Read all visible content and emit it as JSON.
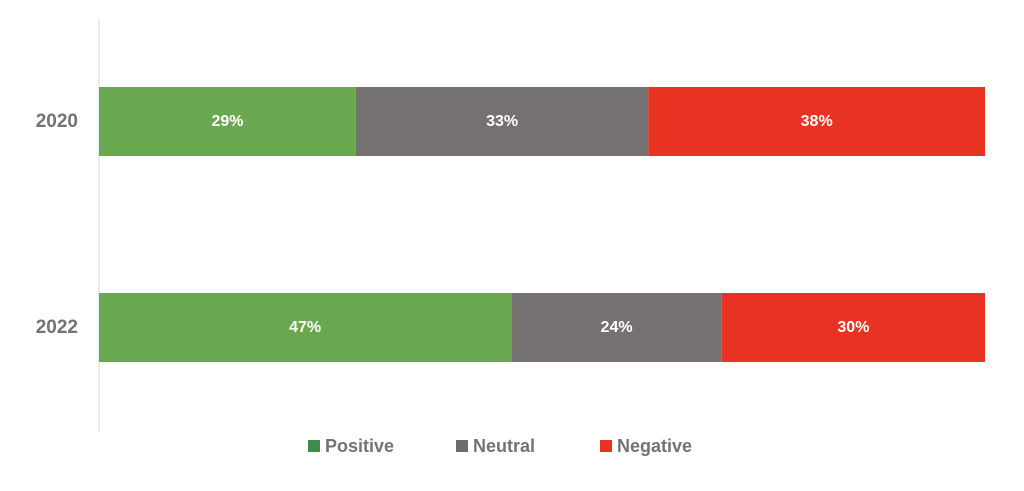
{
  "chart_data": {
    "type": "bar",
    "orientation": "horizontal",
    "stacked": true,
    "categories": [
      "2020",
      "2022"
    ],
    "series": [
      {
        "name": "Positive",
        "values": [
          29,
          47
        ],
        "labels": [
          "29%",
          "47%"
        ],
        "color": "#6aa84f"
      },
      {
        "name": "Neutral",
        "values": [
          33,
          24
        ],
        "labels": [
          "33%",
          "24%"
        ],
        "color": "#767171"
      },
      {
        "name": "Negative",
        "values": [
          38,
          30
        ],
        "labels": [
          "38%",
          "30%"
        ],
        "color": "#e83323"
      }
    ],
    "legend_swatch_colors": [
      "#3d8c4a",
      "#6f6b6a",
      "#e83323"
    ],
    "title": "",
    "xlabel": "",
    "ylabel": "",
    "value_unit": "%",
    "grid": false,
    "axis_line_color": "#d9d9d9",
    "legend_position": "bottom"
  }
}
